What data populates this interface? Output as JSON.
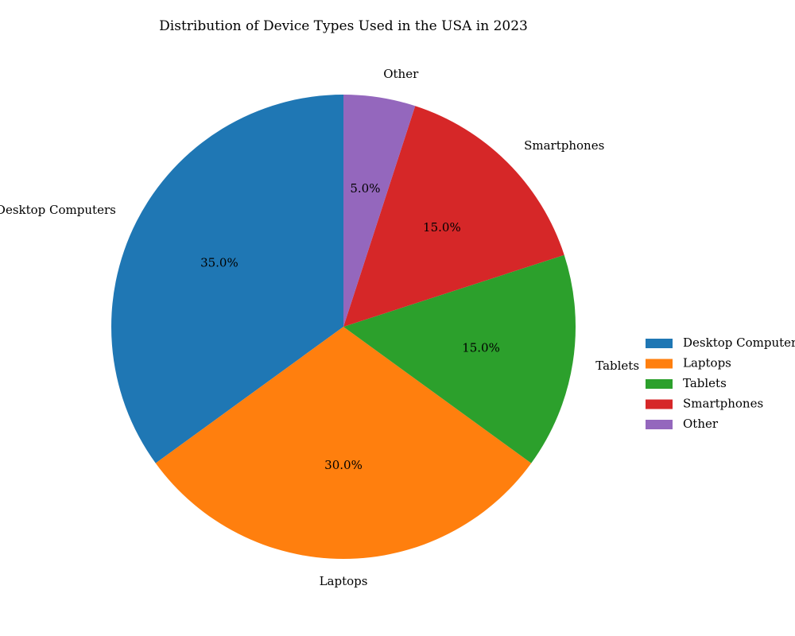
{
  "chart_data": {
    "type": "pie",
    "title": "Distribution of Device Types Used in the USA in 2023",
    "categories": [
      "Desktop Computers",
      "Laptops",
      "Tablets",
      "Smartphones",
      "Other"
    ],
    "values": [
      35,
      30,
      15,
      15,
      5
    ],
    "percent_labels": [
      "35.0%",
      "30.0%",
      "15.0%",
      "15.0%",
      "5.0%"
    ],
    "colors": [
      "#1f77b4",
      "#ff7f0e",
      "#2ca02c",
      "#d62728",
      "#9467bd"
    ],
    "start_angle": "top",
    "direction": "counterclockwise",
    "legend": {
      "position": "right",
      "entries": [
        "Desktop Computers",
        "Laptops",
        "Tablets",
        "Smartphones",
        "Other"
      ]
    }
  }
}
